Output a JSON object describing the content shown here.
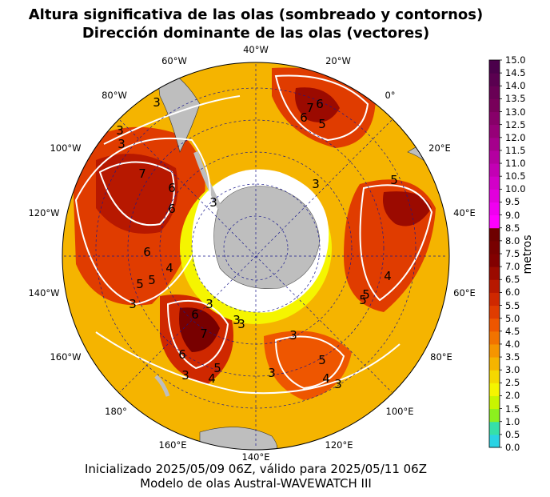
{
  "title": {
    "line1": "Altura significativa de las olas (sombreado y contornos)",
    "line2": "Dirección dominante de las olas (vectores)"
  },
  "footer": {
    "line1": "Inicializado 2025/05/09 06Z, válido para 2025/05/11 06Z",
    "line2": "Modelo de olas Austral-WAVEWATCH III"
  },
  "map": {
    "projection": "south-polar-stereographic",
    "longitude_labels": [
      "40°W",
      "20°W",
      "0°",
      "20°E",
      "40°E",
      "60°E",
      "80°E",
      "100°E",
      "120°E",
      "140°E",
      "160°E",
      "180°",
      "160°W",
      "140°W",
      "120°W",
      "100°W",
      "80°W",
      "60°W"
    ],
    "land_color": "#bebebe",
    "ice_color": "#ffffff",
    "grid_color": "#1a1a8c",
    "contour_color": "#ffffff",
    "contour_labels": [
      "3",
      "3",
      "7",
      "6",
      "3",
      "6",
      "5",
      "6",
      "4",
      "5",
      "6",
      "7",
      "5",
      "3",
      "3",
      "6",
      "4",
      "3",
      "6",
      "5",
      "4",
      "3",
      "3",
      "3",
      "5",
      "5",
      "4",
      "3",
      "5",
      "3",
      "3",
      "7",
      "6",
      "5",
      "3"
    ]
  },
  "colorbar": {
    "label": "metros",
    "ticks": [
      "15.0",
      "14.5",
      "14.0",
      "13.5",
      "13.0",
      "12.5",
      "12.0",
      "11.5",
      "11.0",
      "10.5",
      "10.0",
      "9.5",
      "9.0",
      "8.5",
      "8.0",
      "7.5",
      "7.0",
      "6.5",
      "6.0",
      "5.5",
      "5.0",
      "4.5",
      "4.0",
      "3.5",
      "3.0",
      "2.5",
      "2.0",
      "1.5",
      "1.0",
      "0.5",
      "0.0"
    ],
    "colors": [
      "#2ad3e4",
      "#36e0a8",
      "#8cf01e",
      "#c8f500",
      "#f5f500",
      "#f5d800",
      "#f5b400",
      "#f59500",
      "#f27300",
      "#ee5600",
      "#e03c00",
      "#cf2800",
      "#b71800",
      "#9b0a00",
      "#820000",
      "#780000",
      "#6e0000",
      "#ff00ff",
      "#f000f0",
      "#e100dc",
      "#d200c8",
      "#c300b4",
      "#b400a0",
      "#a5008c",
      "#960078",
      "#870069",
      "#78005a",
      "#690055",
      "#5a0050",
      "#4b004b"
    ]
  }
}
